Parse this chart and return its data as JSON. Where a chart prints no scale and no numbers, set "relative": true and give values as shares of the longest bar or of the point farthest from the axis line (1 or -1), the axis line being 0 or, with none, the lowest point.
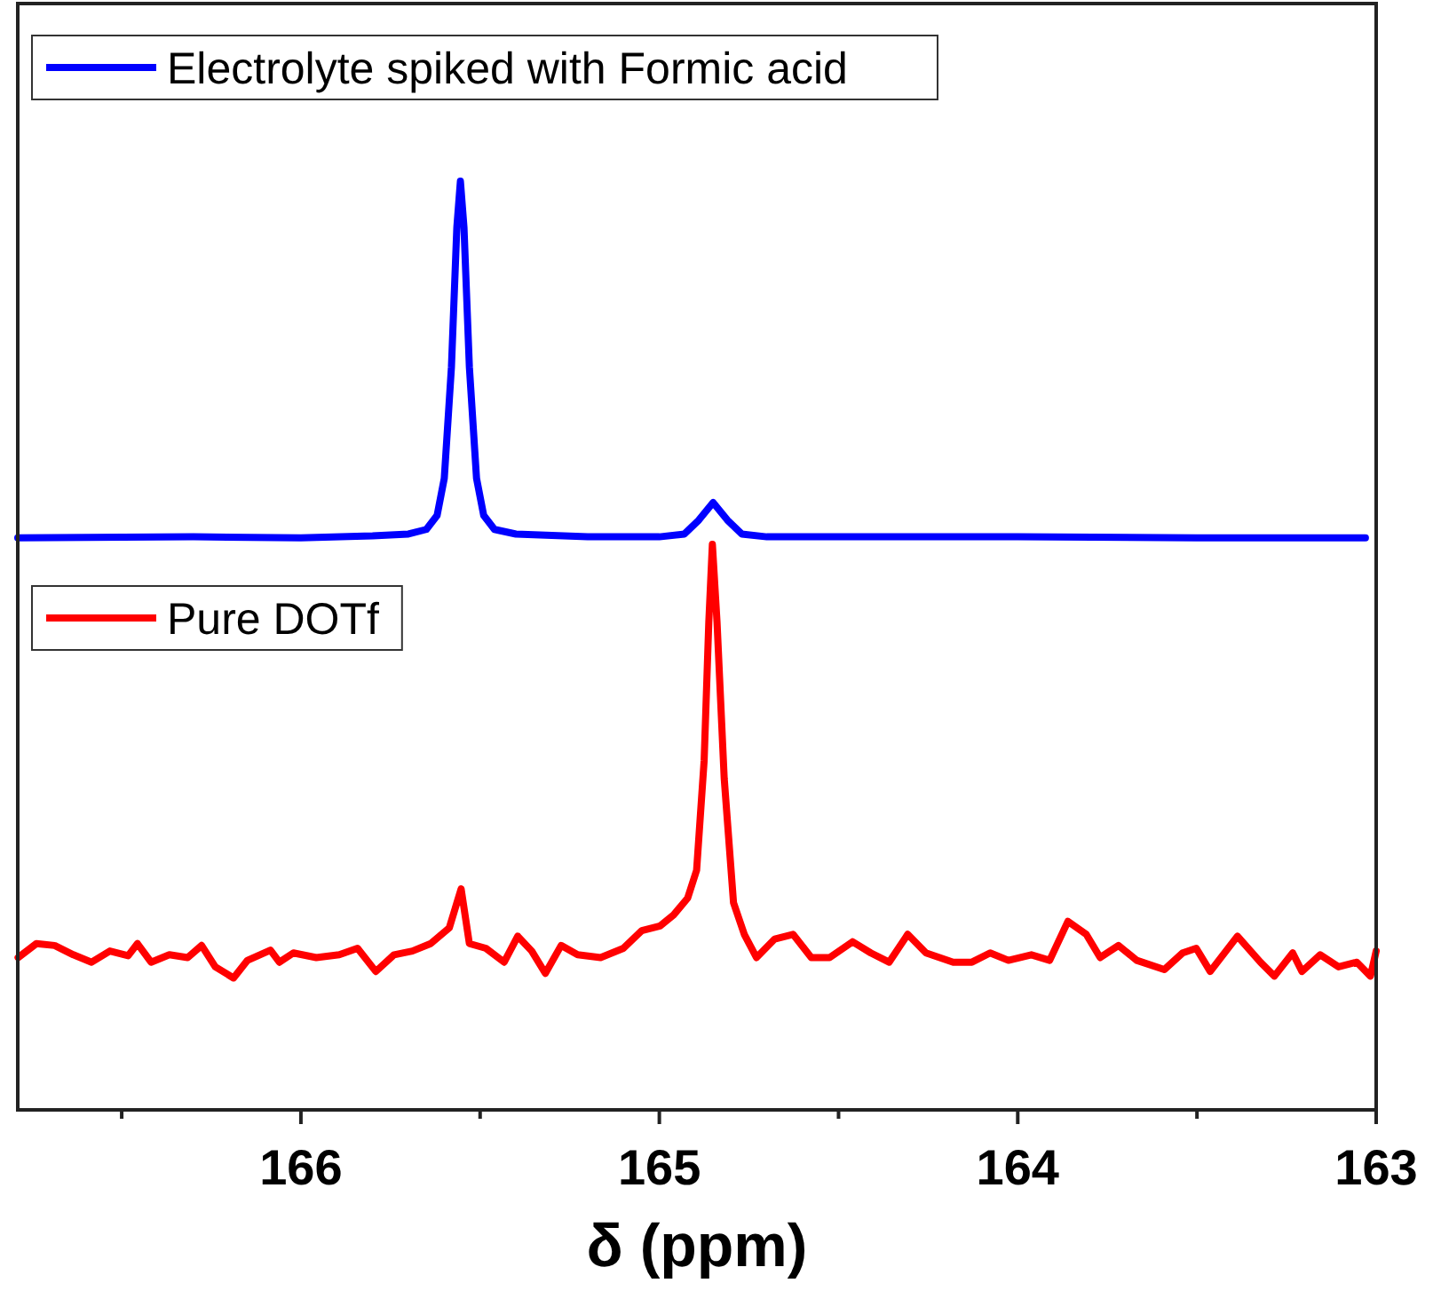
{
  "chart_data": {
    "type": "line",
    "xlabel": "δ (ppm)",
    "relative": true,
    "legend": "top left",
    "grid": false,
    "line_style": "solid",
    "marker": "none",
    "xlim": [
      166.79,
      163.0
    ],
    "xticks": [
      {
        "value": 166.5,
        "label": null
      },
      166,
      {
        "value": 165.5,
        "label": null
      },
      165,
      {
        "value": 164.5,
        "label": null
      },
      164,
      {
        "value": 163.5,
        "label": null
      },
      163
    ],
    "series": [
      {
        "name": "Electrolyte spiked with Formic acid",
        "color": "#0000ff",
        "x": [
          166.79,
          166.3,
          166.0,
          165.8,
          165.7,
          165.65,
          165.62,
          165.6,
          165.58,
          165.565,
          165.555,
          165.545,
          165.53,
          165.51,
          165.49,
          165.46,
          165.4,
          165.2,
          165.0,
          164.93,
          164.89,
          164.85,
          164.81,
          164.77,
          164.7,
          164.0,
          163.5,
          163.03
        ],
        "values": [
          0.616,
          0.617,
          0.616,
          0.618,
          0.62,
          0.625,
          0.64,
          0.68,
          0.8,
          0.95,
          1.0,
          0.95,
          0.8,
          0.68,
          0.64,
          0.625,
          0.62,
          0.617,
          0.617,
          0.62,
          0.635,
          0.654,
          0.635,
          0.62,
          0.617,
          0.617,
          0.616,
          0.616
        ]
      },
      {
        "name": "Pure DOTf",
        "color": "#ff0000",
        "x": [
          166.789,
          166.738,
          166.687,
          166.635,
          166.584,
          166.533,
          166.482,
          166.456,
          166.418,
          166.367,
          166.316,
          166.277,
          166.239,
          166.188,
          166.149,
          166.085,
          166.06,
          166.021,
          165.957,
          165.893,
          165.842,
          165.791,
          165.74,
          165.689,
          165.638,
          165.586,
          165.553,
          165.53,
          165.484,
          165.433,
          165.395,
          165.356,
          165.318,
          165.274,
          165.228,
          165.164,
          165.1,
          165.049,
          164.998,
          164.96,
          164.921,
          164.896,
          164.875,
          164.862,
          164.852,
          164.839,
          164.819,
          164.793,
          164.763,
          164.729,
          164.678,
          164.627,
          164.576,
          164.525,
          164.461,
          164.41,
          164.359,
          164.307,
          164.256,
          164.18,
          164.128,
          164.077,
          164.026,
          163.962,
          163.911,
          163.86,
          163.809,
          163.77,
          163.719,
          163.668,
          163.591,
          163.54,
          163.502,
          163.463,
          163.387,
          163.323,
          163.284,
          163.233,
          163.207,
          163.156,
          163.105,
          163.054,
          163.016,
          163.0
        ],
        "values": [
          0.164,
          0.179,
          0.177,
          0.167,
          0.159,
          0.171,
          0.166,
          0.179,
          0.159,
          0.167,
          0.164,
          0.177,
          0.154,
          0.142,
          0.161,
          0.172,
          0.159,
          0.169,
          0.164,
          0.167,
          0.174,
          0.149,
          0.167,
          0.171,
          0.179,
          0.196,
          0.238,
          0.179,
          0.174,
          0.159,
          0.187,
          0.171,
          0.147,
          0.177,
          0.167,
          0.164,
          0.174,
          0.193,
          0.198,
          0.21,
          0.228,
          0.258,
          0.376,
          0.525,
          0.609,
          0.525,
          0.357,
          0.223,
          0.189,
          0.164,
          0.184,
          0.189,
          0.164,
          0.164,
          0.181,
          0.169,
          0.159,
          0.189,
          0.169,
          0.159,
          0.159,
          0.169,
          0.161,
          0.167,
          0.161,
          0.203,
          0.189,
          0.164,
          0.177,
          0.161,
          0.151,
          0.169,
          0.174,
          0.149,
          0.187,
          0.159,
          0.144,
          0.169,
          0.149,
          0.167,
          0.154,
          0.159,
          0.144,
          0.171
        ]
      }
    ]
  }
}
